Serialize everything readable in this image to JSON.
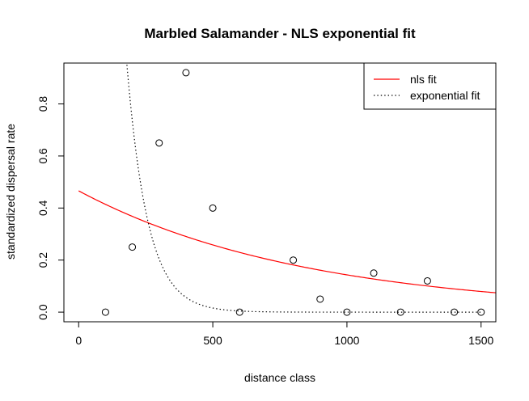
{
  "chart_data": {
    "type": "scatter",
    "title": "Marbled Salamander - NLS exponential fit",
    "xlabel": "distance class",
    "ylabel": "standardized dispersal rate",
    "xlim": [
      -55,
      1555
    ],
    "ylim": [
      -0.037,
      0.957
    ],
    "x_ticks": [
      {
        "value": 0,
        "label": "0"
      },
      {
        "value": 500,
        "label": "500"
      },
      {
        "value": 1000,
        "label": "1000"
      },
      {
        "value": 1500,
        "label": "1500"
      }
    ],
    "y_ticks": [
      {
        "value": 0.0,
        "label": "0.0"
      },
      {
        "value": 0.2,
        "label": "0.2"
      },
      {
        "value": 0.4,
        "label": "0.4"
      },
      {
        "value": 0.6,
        "label": "0.6"
      },
      {
        "value": 0.8,
        "label": "0.8"
      }
    ],
    "grid": false,
    "points": {
      "x": [
        100,
        200,
        300,
        400,
        500,
        600,
        800,
        900,
        1000,
        1100,
        1200,
        1300,
        1400,
        1500
      ],
      "y": [
        0.0,
        0.25,
        0.65,
        0.92,
        0.4,
        0.0,
        0.2,
        0.05,
        0.0,
        0.15,
        0.0,
        0.12,
        0.0,
        0.0
      ]
    },
    "curves": [
      {
        "name": "nls fit",
        "color": "#ff0000",
        "style": "solid",
        "a": 0.466,
        "b": 0.00118,
        "x_from": 0,
        "x_to": 1555
      },
      {
        "name": "exponential fit",
        "color": "#000000",
        "style": "dotted",
        "a": 9.5,
        "b": 0.0128,
        "x_from": 0,
        "x_to": 1500
      }
    ],
    "legend": {
      "position": "top-right",
      "entries": [
        {
          "label": "nls fit",
          "color": "#ff0000",
          "style": "solid"
        },
        {
          "label": "exponential fit",
          "color": "#000000",
          "style": "dotted"
        }
      ]
    }
  }
}
